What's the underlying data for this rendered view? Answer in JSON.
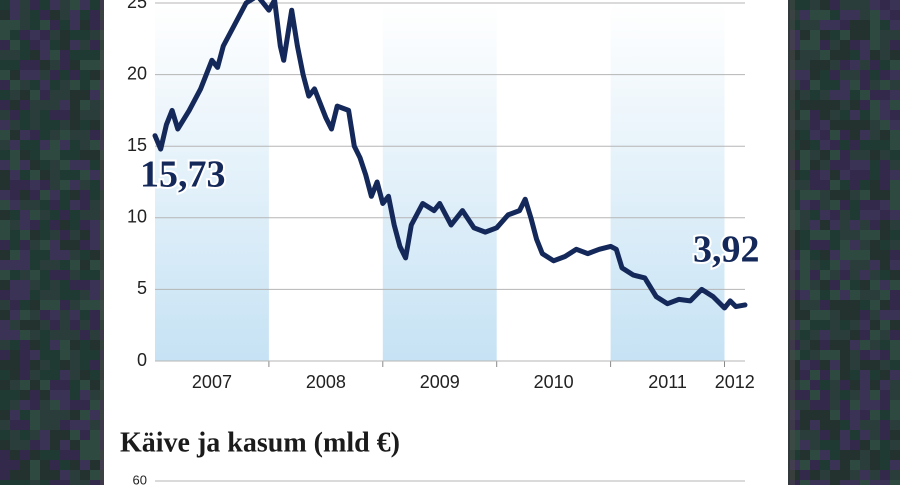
{
  "chart_data": [
    {
      "type": "line",
      "x": [
        2007.0,
        2007.05,
        2007.1,
        2007.15,
        2007.2,
        2007.3,
        2007.4,
        2007.5,
        2007.55,
        2007.6,
        2007.7,
        2007.8,
        2007.9,
        2008.0,
        2008.05,
        2008.1,
        2008.13,
        2008.2,
        2008.25,
        2008.3,
        2008.35,
        2008.4,
        2008.5,
        2008.55,
        2008.6,
        2008.7,
        2008.75,
        2008.8,
        2008.85,
        2008.9,
        2008.95,
        2009.0,
        2009.05,
        2009.1,
        2009.15,
        2009.2,
        2009.25,
        2009.35,
        2009.45,
        2009.5,
        2009.6,
        2009.7,
        2009.8,
        2009.9,
        2010.0,
        2010.1,
        2010.2,
        2010.25,
        2010.3,
        2010.35,
        2010.4,
        2010.5,
        2010.6,
        2010.7,
        2010.8,
        2010.9,
        2011.0,
        2011.05,
        2011.1,
        2011.2,
        2011.3,
        2011.4,
        2011.5,
        2011.6,
        2011.7,
        2011.8,
        2011.9,
        2012.0,
        2012.05,
        2012.1,
        2012.18
      ],
      "series": [
        {
          "name": null,
          "color": "#14295a",
          "values": [
            15.73,
            14.8,
            16.5,
            17.5,
            16.2,
            17.5,
            19,
            21,
            20.5,
            22,
            23.5,
            25,
            25.5,
            24.5,
            25.2,
            22,
            21,
            24.5,
            22,
            20,
            18.5,
            19,
            17,
            16.2,
            17.8,
            17.5,
            15,
            14.2,
            13,
            11.5,
            12.5,
            11,
            11.5,
            9.5,
            8,
            7.2,
            9.5,
            11,
            10.5,
            11,
            9.5,
            10.5,
            9.3,
            9,
            9.3,
            10.2,
            10.5,
            11.3,
            10,
            8.5,
            7.5,
            7,
            7.3,
            7.8,
            7.5,
            7.8,
            8,
            7.8,
            6.5,
            6,
            5.8,
            4.5,
            4,
            4.3,
            4.2,
            5,
            4.5,
            3.7,
            4.2,
            3.8,
            3.92
          ]
        }
      ],
      "xlim": [
        2007,
        2012.18
      ],
      "xticks": [
        2007,
        2008,
        2009,
        2010,
        2011,
        2012
      ],
      "shaded_bands": [
        true,
        false,
        true,
        false,
        true,
        false
      ],
      "ylim": [
        0,
        25
      ],
      "yticks": [
        0,
        5,
        10,
        15,
        20,
        25
      ],
      "grid": true,
      "annotations": [
        "15,73",
        "3,92"
      ]
    },
    {
      "type": "bar",
      "title": "Käive ja kasum (mld €)",
      "ylim": [
        0,
        60
      ],
      "yticks": [
        60
      ]
    }
  ]
}
